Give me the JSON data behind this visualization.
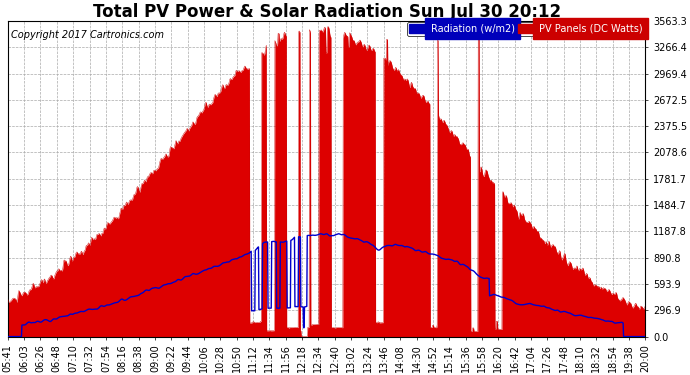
{
  "title": "Total PV Power & Solar Radiation Sun Jul 30 20:12",
  "copyright": "Copyright 2017 Cartronics.com",
  "yticks": [
    0.0,
    296.9,
    593.9,
    890.8,
    1187.8,
    1484.7,
    1781.7,
    2078.6,
    2375.5,
    2672.5,
    2969.4,
    3266.4,
    3563.3
  ],
  "ymax": 3563.3,
  "ymin": 0.0,
  "bg_color": "#ffffff",
  "plot_bg_color": "#ffffff",
  "grid_color": "#aaaaaa",
  "radiation_color": "#0000cc",
  "pv_color": "#cc0000",
  "pv_fill_color": "#dd0000",
  "radiation_label": "Radiation (w/m2)",
  "pv_label": "PV Panels (DC Watts)",
  "legend_radiation_bg": "#0000bb",
  "legend_pv_bg": "#cc0000",
  "title_fontsize": 12,
  "copyright_fontsize": 7,
  "tick_fontsize": 7,
  "xtick_labels": [
    "05:41",
    "06:03",
    "06:26",
    "06:48",
    "07:10",
    "07:32",
    "07:54",
    "08:16",
    "08:38",
    "09:00",
    "09:22",
    "09:44",
    "10:06",
    "10:28",
    "10:50",
    "11:12",
    "11:34",
    "11:56",
    "12:18",
    "12:34",
    "12:40",
    "13:02",
    "13:24",
    "13:46",
    "14:08",
    "14:30",
    "14:52",
    "15:14",
    "15:36",
    "15:58",
    "16:20",
    "16:42",
    "17:04",
    "17:26",
    "17:48",
    "18:10",
    "18:32",
    "18:54",
    "19:38",
    "20:00"
  ]
}
